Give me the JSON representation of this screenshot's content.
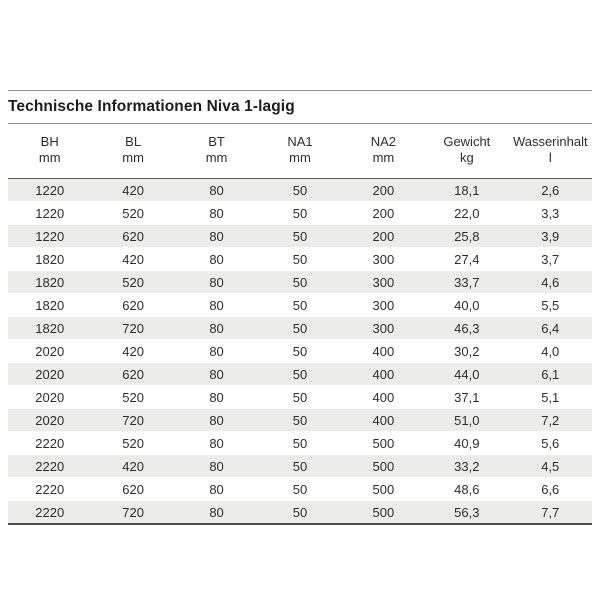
{
  "title": "Technische Informationen Niva 1-lagig",
  "table": {
    "columns": [
      {
        "label": "BH",
        "unit": "mm"
      },
      {
        "label": "BL",
        "unit": "mm"
      },
      {
        "label": "BT",
        "unit": "mm"
      },
      {
        "label": "NA1",
        "unit": "mm"
      },
      {
        "label": "NA2",
        "unit": "mm"
      },
      {
        "label": "Gewicht",
        "unit": "kg"
      },
      {
        "label": "Wasserinhalt",
        "unit": "l"
      }
    ],
    "rows": [
      [
        "1220",
        "420",
        "80",
        "50",
        "200",
        "18,1",
        "2,6"
      ],
      [
        "1220",
        "520",
        "80",
        "50",
        "200",
        "22,0",
        "3,3"
      ],
      [
        "1220",
        "620",
        "80",
        "50",
        "200",
        "25,8",
        "3,9"
      ],
      [
        "1820",
        "420",
        "80",
        "50",
        "300",
        "27,4",
        "3,7"
      ],
      [
        "1820",
        "520",
        "80",
        "50",
        "300",
        "33,7",
        "4,6"
      ],
      [
        "1820",
        "620",
        "80",
        "50",
        "300",
        "40,0",
        "5,5"
      ],
      [
        "1820",
        "720",
        "80",
        "50",
        "300",
        "46,3",
        "6,4"
      ],
      [
        "2020",
        "420",
        "80",
        "50",
        "400",
        "30,2",
        "4,0"
      ],
      [
        "2020",
        "620",
        "80",
        "50",
        "400",
        "44,0",
        "6,1"
      ],
      [
        "2020",
        "520",
        "80",
        "50",
        "400",
        "37,1",
        "5,1"
      ],
      [
        "2020",
        "720",
        "80",
        "50",
        "400",
        "51,0",
        "7,2"
      ],
      [
        "2220",
        "520",
        "80",
        "50",
        "500",
        "40,9",
        "5,6"
      ],
      [
        "2220",
        "420",
        "80",
        "50",
        "500",
        "33,2",
        "4,5"
      ],
      [
        "2220",
        "620",
        "80",
        "50",
        "500",
        "48,6",
        "6,6"
      ],
      [
        "2220",
        "720",
        "80",
        "50",
        "500",
        "56,3",
        "7,7"
      ]
    ]
  },
  "colors": {
    "row_shaded_bg": "#ececea",
    "rule_light": "#8f8f8f",
    "rule_header": "#5f5f5f",
    "rule_bottom": "#4f4f4f",
    "text": "#2e2e2e"
  }
}
